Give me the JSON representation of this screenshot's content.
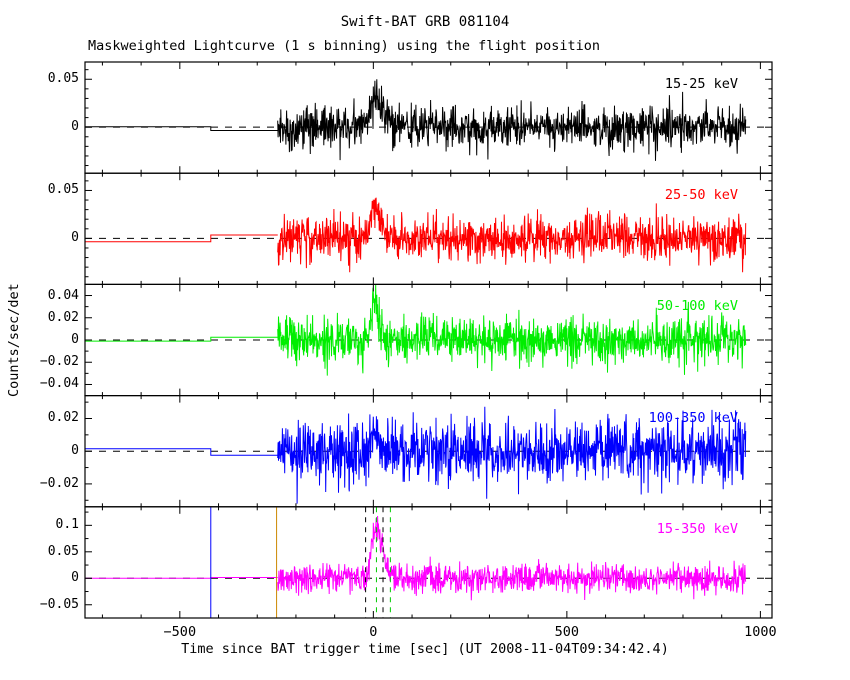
{
  "chart_data": {
    "type": "line",
    "title": "Swift-BAT GRB 081104",
    "subtitle": "Maskweighted Lightcurve (1 s binning) using the flight position",
    "xlabel": "Time since BAT trigger time [sec] (UT 2008-11-04T09:34:42.4)",
    "ylabel": "Counts/sec/det",
    "trigger_time_utc": "2008-11-04T09:34:42.4",
    "binning_sec": 1,
    "xlim": [
      -745,
      1030
    ],
    "xticks": [
      -500,
      0,
      500,
      1000
    ],
    "xtick_labels": [
      "−500",
      "0",
      "500",
      "1000"
    ],
    "xtick_minor_step": 100,
    "grid": false,
    "legend_position": "in-panel-right",
    "panels": [
      {
        "label": "15-25 keV",
        "color": "#000000",
        "ylim": [
          -0.048,
          0.068
        ],
        "yticks": [
          0,
          0.05
        ],
        "ytick_labels": [
          "0",
          "0.05"
        ],
        "ytick_minor_step": 0.01,
        "baseline": 0,
        "zero_line_dashed": true,
        "pre_segment": {
          "start": -745,
          "level": 0.0005,
          "step_time": -420,
          "step_level": -0.0035
        },
        "noise": {
          "start": -247,
          "end": 962,
          "sigma": 0.011,
          "seed": 11
        },
        "burst": {
          "t_peak": 4,
          "rise_width": 16,
          "decay_width": 22,
          "amplitude": 0.028
        }
      },
      {
        "label": "25-50 keV",
        "color": "#ff0000",
        "ylim": [
          -0.048,
          0.068
        ],
        "yticks": [
          0,
          0.05
        ],
        "ytick_labels": [
          "0",
          "0.05"
        ],
        "ytick_minor_step": 0.01,
        "baseline": 0,
        "zero_line_dashed": true,
        "pre_segment": {
          "start": -745,
          "level": -0.0035,
          "step_time": -420,
          "step_level": 0.0035
        },
        "noise": {
          "start": -247,
          "end": 962,
          "sigma": 0.011,
          "seed": 22
        },
        "burst": {
          "t_peak": 3,
          "rise_width": 10,
          "decay_width": 17,
          "amplitude": 0.035
        }
      },
      {
        "label": "50-100 keV",
        "color": "#00ee00",
        "ylim": [
          -0.05,
          0.05
        ],
        "yticks": [
          -0.04,
          -0.02,
          0,
          0.02,
          0.04
        ],
        "ytick_labels": [
          "−0.04",
          "−0.02",
          "0",
          "0.02",
          "0.04"
        ],
        "ytick_minor_step": 0.01,
        "baseline": 0,
        "zero_line_dashed": true,
        "pre_segment": {
          "start": -745,
          "level": -0.001,
          "step_time": -420,
          "step_level": 0.0025
        },
        "noise": {
          "start": -247,
          "end": 962,
          "sigma": 0.0105,
          "seed": 33
        },
        "burst": {
          "t_peak": 2,
          "rise_width": 6,
          "decay_width": 11,
          "amplitude": 0.034
        }
      },
      {
        "label": "100-350 keV",
        "color": "#0000ff",
        "ylim": [
          -0.034,
          0.034
        ],
        "yticks": [
          -0.02,
          0,
          0.02
        ],
        "ytick_labels": [
          "−0.02",
          "0",
          "0.02"
        ],
        "ytick_minor_step": 0.01,
        "baseline": 0,
        "zero_line_dashed": true,
        "pre_segment": {
          "start": -745,
          "level": 0.0015,
          "step_time": -420,
          "step_level": -0.0025
        },
        "noise": {
          "start": -247,
          "end": 962,
          "sigma": 0.0095,
          "seed": 44
        },
        "burst": {
          "t_peak": 3,
          "rise_width": 8,
          "decay_width": 11,
          "amplitude": 0.007
        }
      },
      {
        "label": "15-350 keV",
        "color": "#ff00ff",
        "ylim": [
          -0.075,
          0.135
        ],
        "yticks": [
          -0.05,
          0,
          0.05,
          0.1
        ],
        "ytick_labels": [
          "−0.05",
          "0",
          "0.05",
          "0.1"
        ],
        "ytick_minor_step": 0.025,
        "baseline": 0,
        "zero_line_dashed": true,
        "pre_segment": {
          "start": -745,
          "level": 0.0,
          "step_time": -420,
          "step_level": 0.0015
        },
        "noise": {
          "start": -247,
          "end": 962,
          "sigma": 0.0135,
          "seed": 55
        },
        "burst": {
          "t_peak": 5,
          "rise_width": 9,
          "decay_width": 18,
          "amplitude": 0.094
        }
      }
    ],
    "event_markers_bottom_panel": [
      {
        "t": -420,
        "color": "#0000ff",
        "style": "solid"
      },
      {
        "t": -250,
        "color": "#cc8800",
        "style": "solid"
      },
      {
        "t": -20,
        "color": "#000000",
        "style": "dashed"
      },
      {
        "t": 25,
        "color": "#000000",
        "style": "dashed"
      },
      {
        "t": 8,
        "color": "#00cc00",
        "style": "dashed"
      },
      {
        "t": 44,
        "color": "#00cc00",
        "style": "dashed"
      }
    ]
  }
}
